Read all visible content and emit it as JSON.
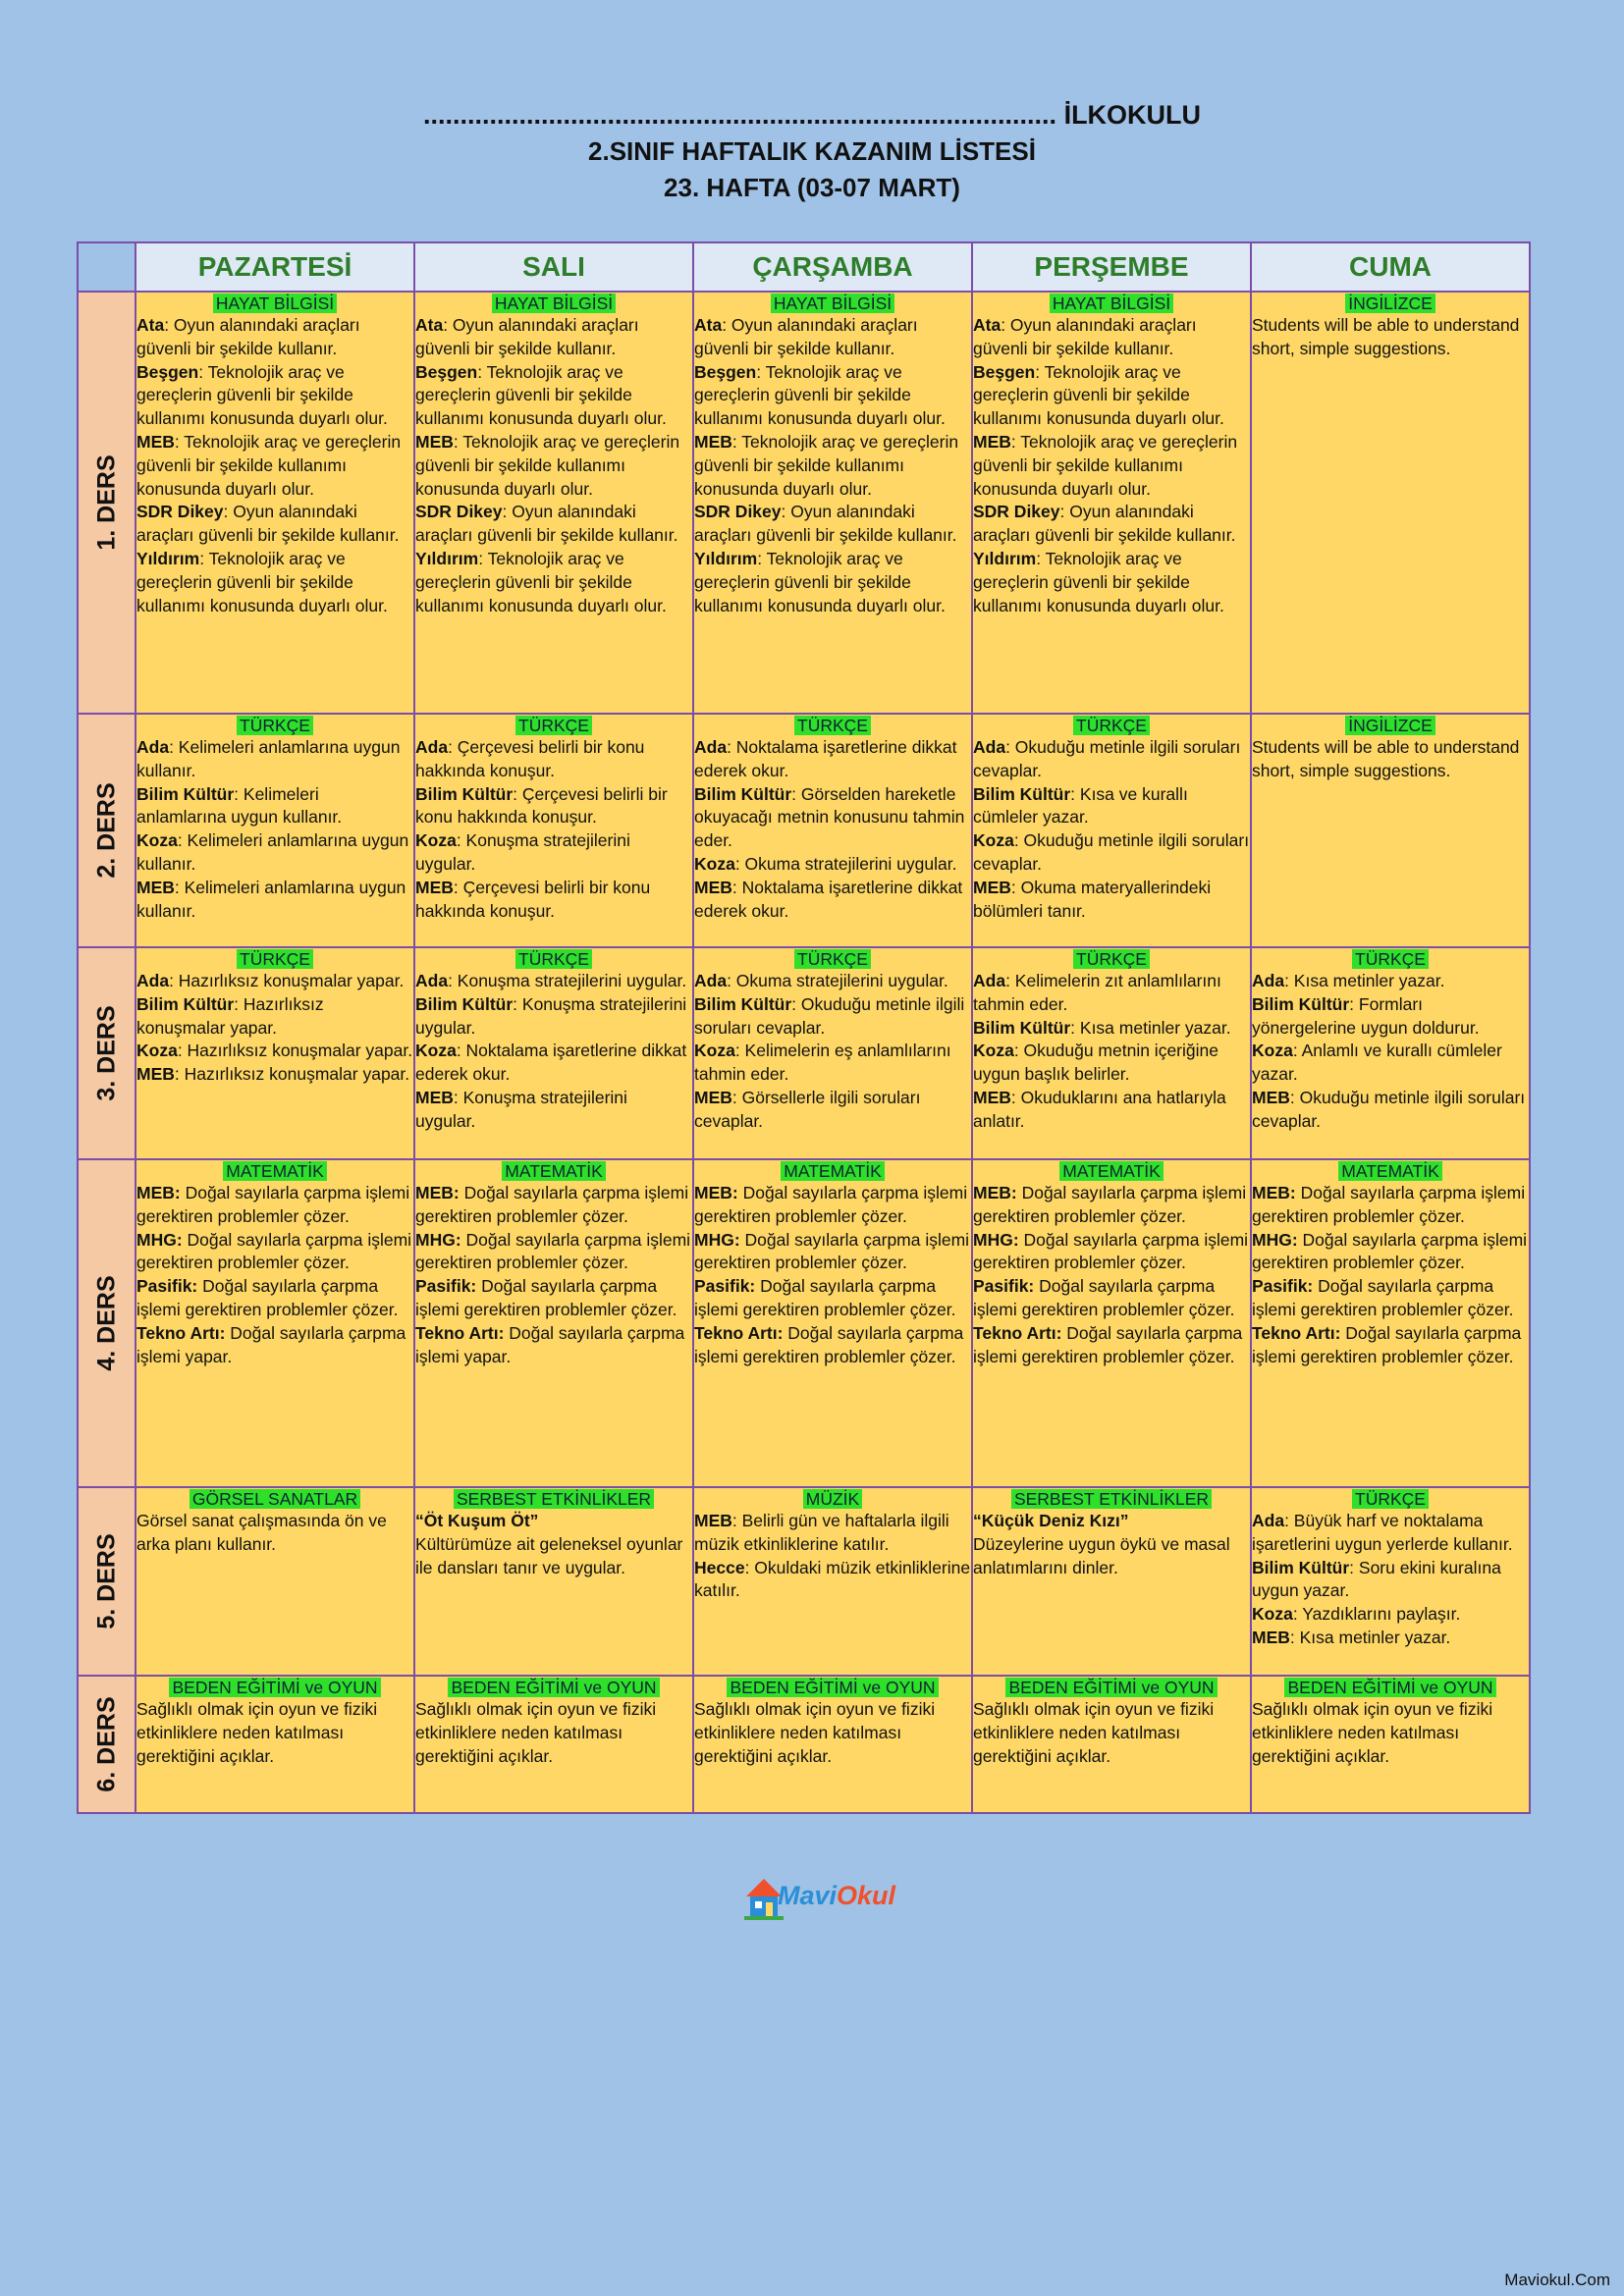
{
  "header": {
    "school": "...................................................................................... İLKOKULU",
    "title": "2.SINIF HAFTALIK KAZANIM LİSTESİ",
    "week": "23. HAFTA (03-07 MART)"
  },
  "days": [
    "PAZARTESİ",
    "SALI",
    "ÇARŞAMBA",
    "PERŞEMBE",
    "CUMA"
  ],
  "rows": [
    {
      "label": "1. DERS",
      "cells": [
        {
          "subject": "HAYAT BİLGİSİ",
          "entries": [
            {
              "bold": "Ata",
              "text": ": Oyun alanındaki araçları güvenli bir şekilde kullanır."
            },
            {
              "bold": "Beşgen",
              "text": ": Teknolojik araç ve gereçlerin güvenli bir şekilde kullanımı konusunda duyarlı olur."
            },
            {
              "bold": "MEB",
              "text": ": Teknolojik araç ve gereçlerin güvenli bir şekilde kullanımı konusunda duyarlı olur."
            },
            {
              "bold": "SDR Dikey",
              "text": ": Oyun alanındaki araçları güvenli bir şekilde kullanır."
            },
            {
              "bold": "Yıldırım",
              "text": ": Teknolojik araç ve gereçlerin güvenli bir şekilde kullanımı konusunda duyarlı olur."
            }
          ]
        },
        {
          "subject": "HAYAT BİLGİSİ",
          "entries": [
            {
              "bold": "Ata",
              "text": ": Oyun alanındaki araçları güvenli bir şekilde kullanır."
            },
            {
              "bold": "Beşgen",
              "text": ": Teknolojik araç ve gereçlerin güvenli bir şekilde kullanımı konusunda duyarlı olur."
            },
            {
              "bold": "MEB",
              "text": ": Teknolojik araç ve gereçlerin güvenli bir şekilde kullanımı konusunda duyarlı olur."
            },
            {
              "bold": "SDR Dikey",
              "text": ": Oyun alanındaki araçları güvenli bir şekilde kullanır."
            },
            {
              "bold": "Yıldırım",
              "text": ": Teknolojik araç ve gereçlerin güvenli bir şekilde kullanımı konusunda duyarlı olur."
            }
          ]
        },
        {
          "subject": "HAYAT BİLGİSİ",
          "entries": [
            {
              "bold": "Ata",
              "text": ": Oyun alanındaki araçları güvenli bir şekilde kullanır."
            },
            {
              "bold": "Beşgen",
              "text": ": Teknolojik araç ve gereçlerin güvenli bir şekilde kullanımı konusunda duyarlı olur."
            },
            {
              "bold": "MEB",
              "text": ": Teknolojik araç ve gereçlerin güvenli bir şekilde kullanımı konusunda duyarlı olur."
            },
            {
              "bold": "SDR Dikey",
              "text": ": Oyun alanındaki araçları güvenli bir şekilde kullanır."
            },
            {
              "bold": "Yıldırım",
              "text": ": Teknolojik araç ve gereçlerin güvenli bir şekilde kullanımı konusunda duyarlı olur."
            }
          ]
        },
        {
          "subject": "HAYAT BİLGİSİ",
          "entries": [
            {
              "bold": "Ata",
              "text": ": Oyun alanındaki araçları güvenli bir şekilde kullanır."
            },
            {
              "bold": "Beşgen",
              "text": ": Teknolojik araç ve gereçlerin güvenli bir şekilde kullanımı konusunda duyarlı olur."
            },
            {
              "bold": "MEB",
              "text": ": Teknolojik araç ve gereçlerin güvenli bir şekilde kullanımı konusunda duyarlı olur."
            },
            {
              "bold": "SDR Dikey",
              "text": ": Oyun alanındaki araçları güvenli bir şekilde kullanır."
            },
            {
              "bold": "Yıldırım",
              "text": ": Teknolojik araç ve gereçlerin güvenli bir şekilde kullanımı konusunda duyarlı olur."
            }
          ]
        },
        {
          "subject": "İNGİLİZCE",
          "entries": [
            {
              "bold": "",
              "text": "Students will be able to understand short, simple suggestions."
            }
          ]
        }
      ]
    },
    {
      "label": "2. DERS",
      "cells": [
        {
          "subject": "TÜRKÇE",
          "entries": [
            {
              "bold": "Ada",
              "text": ": Kelimeleri anlamlarına uygun kullanır."
            },
            {
              "bold": "Bilim Kültür",
              "text": ": Kelimeleri anlamlarına uygun kullanır."
            },
            {
              "bold": "Koza",
              "text": ": Kelimeleri anlamlarına uygun kullanır."
            },
            {
              "bold": "MEB",
              "text": ": Kelimeleri anlamlarına uygun kullanır."
            }
          ]
        },
        {
          "subject": "TÜRKÇE",
          "entries": [
            {
              "bold": "Ada",
              "text": ": Çerçevesi belirli bir konu hakkında konuşur."
            },
            {
              "bold": "Bilim Kültür",
              "text": ": Çerçevesi belirli bir konu hakkında konuşur."
            },
            {
              "bold": "Koza",
              "text": ": Konuşma stratejilerini uygular."
            },
            {
              "bold": "MEB",
              "text": ": Çerçevesi belirli bir konu hakkında konuşur."
            }
          ]
        },
        {
          "subject": "TÜRKÇE",
          "entries": [
            {
              "bold": "Ada",
              "text": ": Noktalama işaretlerine dikkat ederek okur."
            },
            {
              "bold": "Bilim Kültür",
              "text": ": Görselden hareketle okuyacağı metnin konusunu tahmin eder."
            },
            {
              "bold": "Koza",
              "text": ": Okuma stratejilerini uygular."
            },
            {
              "bold": "MEB",
              "text": ": Noktalama işaretlerine dikkat ederek okur."
            }
          ]
        },
        {
          "subject": "TÜRKÇE",
          "entries": [
            {
              "bold": "Ada",
              "text": ": Okuduğu metinle ilgili soruları cevaplar."
            },
            {
              "bold": "Bilim Kültür",
              "text": ": Kısa ve kurallı cümleler yazar."
            },
            {
              "bold": "Koza",
              "text": ": Okuduğu metinle ilgili soruları cevaplar."
            },
            {
              "bold": "MEB",
              "text": ": Okuma materyallerindeki bölümleri tanır."
            }
          ]
        },
        {
          "subject": "İNGİLİZCE",
          "entries": [
            {
              "bold": "",
              "text": "Students will be able to understand short, simple suggestions."
            }
          ]
        }
      ]
    },
    {
      "label": "3. DERS",
      "cells": [
        {
          "subject": "TÜRKÇE",
          "entries": [
            {
              "bold": "Ada",
              "text": ": Hazırlıksız konuşmalar yapar."
            },
            {
              "bold": "Bilim Kültür",
              "text": ": Hazırlıksız konuşmalar yapar."
            },
            {
              "bold": "Koza",
              "text": ": Hazırlıksız konuşmalar yapar."
            },
            {
              "bold": "MEB",
              "text": ": Hazırlıksız konuşmalar yapar."
            }
          ]
        },
        {
          "subject": "TÜRKÇE",
          "entries": [
            {
              "bold": "Ada",
              "text": ": Konuşma stratejilerini uygular."
            },
            {
              "bold": "Bilim Kültür",
              "text": ": Konuşma stratejilerini uygular."
            },
            {
              "bold": "Koza",
              "text": ": Noktalama işaretlerine dikkat ederek okur."
            },
            {
              "bold": "MEB",
              "text": ": Konuşma stratejilerini uygular."
            }
          ]
        },
        {
          "subject": "TÜRKÇE",
          "entries": [
            {
              "bold": "Ada",
              "text": ": Okuma stratejilerini uygular."
            },
            {
              "bold": "Bilim Kültür",
              "text": ": Okuduğu metinle ilgili soruları cevaplar."
            },
            {
              "bold": "Koza",
              "text": ": Kelimelerin eş anlamlılarını tahmin eder."
            },
            {
              "bold": "MEB",
              "text": ": Görsellerle ilgili soruları cevaplar."
            }
          ]
        },
        {
          "subject": "TÜRKÇE",
          "entries": [
            {
              "bold": "Ada",
              "text": ": Kelimelerin zıt anlamlılarını tahmin eder."
            },
            {
              "bold": "Bilim Kültür",
              "text": ": Kısa metinler yazar."
            },
            {
              "bold": "Koza",
              "text": ": Okuduğu metnin içeriğine uygun başlık belirler."
            },
            {
              "bold": "MEB",
              "text": ": Okuduklarını ana hatlarıyla anlatır."
            }
          ]
        },
        {
          "subject": "TÜRKÇE",
          "entries": [
            {
              "bold": "Ada",
              "text": ": Kısa metinler yazar."
            },
            {
              "bold": "Bilim Kültür",
              "text": ": Formları yönergelerine uygun doldurur."
            },
            {
              "bold": "Koza",
              "text": ": Anlamlı ve kurallı cümleler yazar."
            },
            {
              "bold": "MEB",
              "text": ": Okuduğu metinle ilgili soruları cevaplar."
            }
          ]
        }
      ]
    },
    {
      "label": "4. DERS",
      "cells": [
        {
          "subject": "MATEMATİK",
          "entries": [
            {
              "bold": "MEB:",
              "text": " Doğal sayılarla çarpma işlemi gerektiren problemler çözer."
            },
            {
              "bold": "MHG:",
              "text": " Doğal sayılarla çarpma işlemi gerektiren problemler çözer."
            },
            {
              "bold": "Pasifik:",
              "text": " Doğal sayılarla çarpma işlemi gerektiren problemler çözer."
            },
            {
              "bold": "Tekno Artı:",
              "text": " Doğal sayılarla çarpma işlemi yapar."
            }
          ]
        },
        {
          "subject": "MATEMATİK",
          "entries": [
            {
              "bold": "MEB:",
              "text": " Doğal sayılarla çarpma işlemi gerektiren problemler çözer."
            },
            {
              "bold": "MHG:",
              "text": " Doğal sayılarla çarpma işlemi gerektiren problemler çözer."
            },
            {
              "bold": "Pasifik:",
              "text": " Doğal sayılarla çarpma işlemi gerektiren problemler çözer."
            },
            {
              "bold": "Tekno Artı:",
              "text": " Doğal sayılarla çarpma işlemi yapar."
            }
          ]
        },
        {
          "subject": "MATEMATİK",
          "entries": [
            {
              "bold": "MEB:",
              "text": " Doğal sayılarla çarpma işlemi gerektiren problemler çözer."
            },
            {
              "bold": "MHG:",
              "text": " Doğal sayılarla çarpma işlemi gerektiren problemler çözer."
            },
            {
              "bold": "Pasifik:",
              "text": " Doğal sayılarla çarpma işlemi gerektiren problemler çözer."
            },
            {
              "bold": "Tekno Artı:",
              "text": " Doğal sayılarla çarpma işlemi gerektiren problemler çözer."
            }
          ]
        },
        {
          "subject": "MATEMATİK",
          "entries": [
            {
              "bold": "MEB:",
              "text": " Doğal sayılarla çarpma işlemi gerektiren problemler çözer."
            },
            {
              "bold": "MHG:",
              "text": " Doğal sayılarla çarpma işlemi gerektiren problemler çözer."
            },
            {
              "bold": "Pasifik:",
              "text": " Doğal sayılarla çarpma işlemi gerektiren problemler çözer."
            },
            {
              "bold": "Tekno Artı:",
              "text": " Doğal sayılarla çarpma işlemi gerektiren problemler çözer."
            }
          ]
        },
        {
          "subject": "MATEMATİK",
          "entries": [
            {
              "bold": "MEB:",
              "text": " Doğal sayılarla çarpma işlemi gerektiren problemler çözer."
            },
            {
              "bold": "MHG:",
              "text": " Doğal sayılarla çarpma işlemi gerektiren problemler çözer."
            },
            {
              "bold": "Pasifik:",
              "text": " Doğal sayılarla çarpma işlemi gerektiren problemler çözer."
            },
            {
              "bold": "Tekno Artı:",
              "text": " Doğal sayılarla çarpma işlemi gerektiren problemler çözer."
            }
          ]
        }
      ]
    },
    {
      "label": "5. DERS",
      "cells": [
        {
          "subject": "GÖRSEL SANATLAR",
          "entries": [
            {
              "bold": "",
              "text": "Görsel sanat çalışmasında ön ve arka planı kullanır."
            }
          ]
        },
        {
          "subject": "SERBEST ETKİNLİKLER",
          "entries": [
            {
              "bold": "“Öt Kuşum Öt”",
              "text": ""
            },
            {
              "bold": "",
              "text": "Kültürümüze ait geleneksel oyunlar ile dansları tanır ve uygular."
            }
          ]
        },
        {
          "subject": "MÜZİK",
          "entries": [
            {
              "bold": "MEB",
              "text": ": Belirli gün ve haftalarla ilgili müzik etkinliklerine katılır."
            },
            {
              "bold": "Hecce",
              "text": ": Okuldaki müzik etkinliklerine katılır."
            }
          ]
        },
        {
          "subject": "SERBEST ETKİNLİKLER",
          "entries": [
            {
              "bold": "“Küçük Deniz Kızı”",
              "text": ""
            },
            {
              "bold": "",
              "text": "Düzeylerine uygun öykü ve masal anlatımlarını dinler."
            }
          ]
        },
        {
          "subject": "TÜRKÇE",
          "entries": [
            {
              "bold": "Ada",
              "text": ": Büyük harf ve noktalama işaretlerini uygun yerlerde kullanır."
            },
            {
              "bold": "Bilim Kültür",
              "text": ": Soru ekini kuralına uygun yazar."
            },
            {
              "bold": "Koza",
              "text": ": Yazdıklarını paylaşır."
            },
            {
              "bold": "MEB",
              "text": ": Kısa metinler yazar."
            }
          ]
        }
      ]
    },
    {
      "label": "6. DERS",
      "cells": [
        {
          "subject": "BEDEN EĞİTİMİ ve OYUN",
          "entries": [
            {
              "bold": "",
              "text": "Sağlıklı olmak için oyun ve fiziki etkinliklere neden katılması gerektiğini açıklar."
            }
          ]
        },
        {
          "subject": "BEDEN EĞİTİMİ ve OYUN",
          "entries": [
            {
              "bold": "",
              "text": "Sağlıklı olmak için oyun ve fiziki etkinliklere neden katılması gerektiğini açıklar."
            }
          ]
        },
        {
          "subject": "BEDEN EĞİTİMİ ve OYUN",
          "entries": [
            {
              "bold": "",
              "text": "Sağlıklı olmak için oyun ve fiziki etkinliklere neden katılması gerektiğini açıklar."
            }
          ]
        },
        {
          "subject": "BEDEN EĞİTİMİ ve OYUN",
          "entries": [
            {
              "bold": "",
              "text": "Sağlıklı olmak için oyun ve fiziki etkinliklere neden katılması gerektiğini açıklar."
            }
          ]
        },
        {
          "subject": "BEDEN EĞİTİMİ ve OYUN",
          "entries": [
            {
              "bold": "",
              "text": "Sağlıklı olmak için oyun ve fiziki etkinliklere neden katılması gerektiğini açıklar."
            }
          ]
        }
      ]
    }
  ],
  "logo": {
    "part1": "Mavi",
    "part2": "Okul"
  },
  "footer": "Maviokul.Com",
  "colors": {
    "background": "#a0c2e6",
    "cell": "#fed766",
    "label": "#f5c9a4",
    "day_header": "#dfe9f6",
    "day_text": "#2e7d2a",
    "subject_highlight": "#2ee02a",
    "border": "#7b4ea8"
  }
}
